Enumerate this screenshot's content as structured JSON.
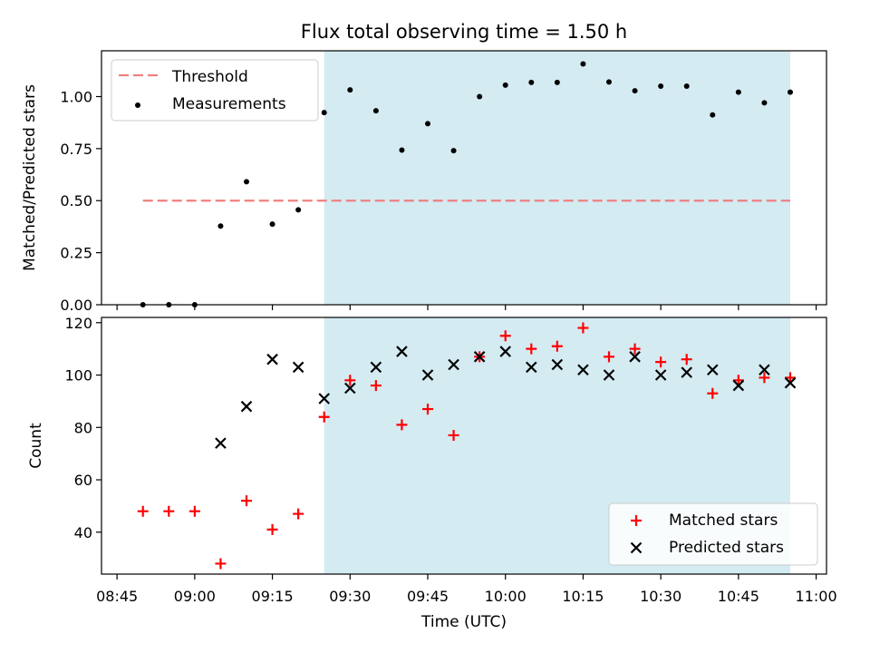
{
  "figure": {
    "title": "Flux total observing time = 1.50 h"
  },
  "chart_data": [
    {
      "type": "scatter",
      "title": "Flux total observing time = 1.50 h",
      "xlabel": "",
      "ylabel": "Matched/Predicted stars",
      "xlim": [
        "08:42",
        "11:02"
      ],
      "ylim": [
        0.0,
        1.22
      ],
      "yticks": [
        0.0,
        0.25,
        0.5,
        0.75,
        1.0
      ],
      "ytick_labels": [
        "0.00",
        "0.25",
        "0.50",
        "0.75",
        "1.00"
      ],
      "grid": false,
      "legend_position": "upper-left",
      "shaded_span": {
        "start": "09:25",
        "end": "10:55",
        "color": "#add8e6"
      },
      "series": [
        {
          "name": "Threshold",
          "kind": "dashed-line",
          "color": "#f08080",
          "x": [
            "08:50",
            "10:55"
          ],
          "y": [
            0.5,
            0.5
          ]
        },
        {
          "name": "Measurements",
          "kind": "points",
          "color": "#000000",
          "x": [
            "08:50",
            "08:55",
            "09:00",
            "09:05",
            "09:10",
            "09:15",
            "09:20",
            "09:25",
            "09:30",
            "09:35",
            "09:40",
            "09:45",
            "09:50",
            "09:55",
            "10:00",
            "10:05",
            "10:10",
            "10:15",
            "10:20",
            "10:25",
            "10:30",
            "10:35",
            "10:40",
            "10:45",
            "10:50",
            "10:55"
          ],
          "y": [
            0.0,
            0.0,
            0.0,
            0.378,
            0.591,
            0.387,
            0.456,
            0.923,
            1.032,
            0.932,
            0.743,
            0.87,
            0.74,
            1.0,
            1.055,
            1.068,
            1.068,
            1.157,
            1.07,
            1.028,
            1.05,
            1.05,
            0.912,
            1.021,
            0.97,
            1.021
          ]
        }
      ]
    },
    {
      "type": "scatter",
      "xlabel": "Time (UTC)",
      "ylabel": "Count",
      "xlim": [
        "08:42",
        "11:02"
      ],
      "ylim": [
        24,
        122
      ],
      "yticks": [
        40,
        60,
        80,
        100,
        120
      ],
      "ytick_labels": [
        "40",
        "60",
        "80",
        "100",
        "120"
      ],
      "xticks": [
        "08:45",
        "09:00",
        "09:15",
        "09:30",
        "09:45",
        "10:00",
        "10:15",
        "10:30",
        "10:45",
        "11:00"
      ],
      "xtick_labels": [
        "08:45",
        "09:00",
        "09:15",
        "09:30",
        "09:45",
        "10:00",
        "10:15",
        "10:30",
        "10:45",
        "11:00"
      ],
      "grid": false,
      "legend_position": "lower-right",
      "shaded_span": {
        "start": "09:25",
        "end": "10:55",
        "color": "#add8e6"
      },
      "series": [
        {
          "name": "Matched stars",
          "marker": "plus",
          "color": "#ff0000",
          "x": [
            "08:50",
            "08:55",
            "09:00",
            "09:05",
            "09:10",
            "09:15",
            "09:20",
            "09:25",
            "09:30",
            "09:35",
            "09:40",
            "09:45",
            "09:50",
            "09:55",
            "10:00",
            "10:05",
            "10:10",
            "10:15",
            "10:20",
            "10:25",
            "10:30",
            "10:35",
            "10:40",
            "10:45",
            "10:50",
            "10:55"
          ],
          "y": [
            48,
            48,
            48,
            28,
            52,
            41,
            47,
            84,
            98,
            96,
            81,
            87,
            77,
            107,
            115,
            110,
            111,
            118,
            107,
            110,
            105,
            106,
            93,
            98,
            99,
            99
          ]
        },
        {
          "name": "Predicted stars",
          "marker": "x",
          "color": "#000000",
          "x": [
            "09:05",
            "09:10",
            "09:15",
            "09:20",
            "09:25",
            "09:30",
            "09:35",
            "09:40",
            "09:45",
            "09:50",
            "09:55",
            "10:00",
            "10:05",
            "10:10",
            "10:15",
            "10:20",
            "10:25",
            "10:30",
            "10:35",
            "10:40",
            "10:45",
            "10:50",
            "10:55"
          ],
          "y": [
            74,
            88,
            106,
            103,
            91,
            95,
            103,
            109,
            100,
            104,
            107,
            109,
            103,
            104,
            102,
            100,
            107,
            100,
            101,
            102,
            96,
            102,
            97
          ]
        }
      ]
    }
  ]
}
